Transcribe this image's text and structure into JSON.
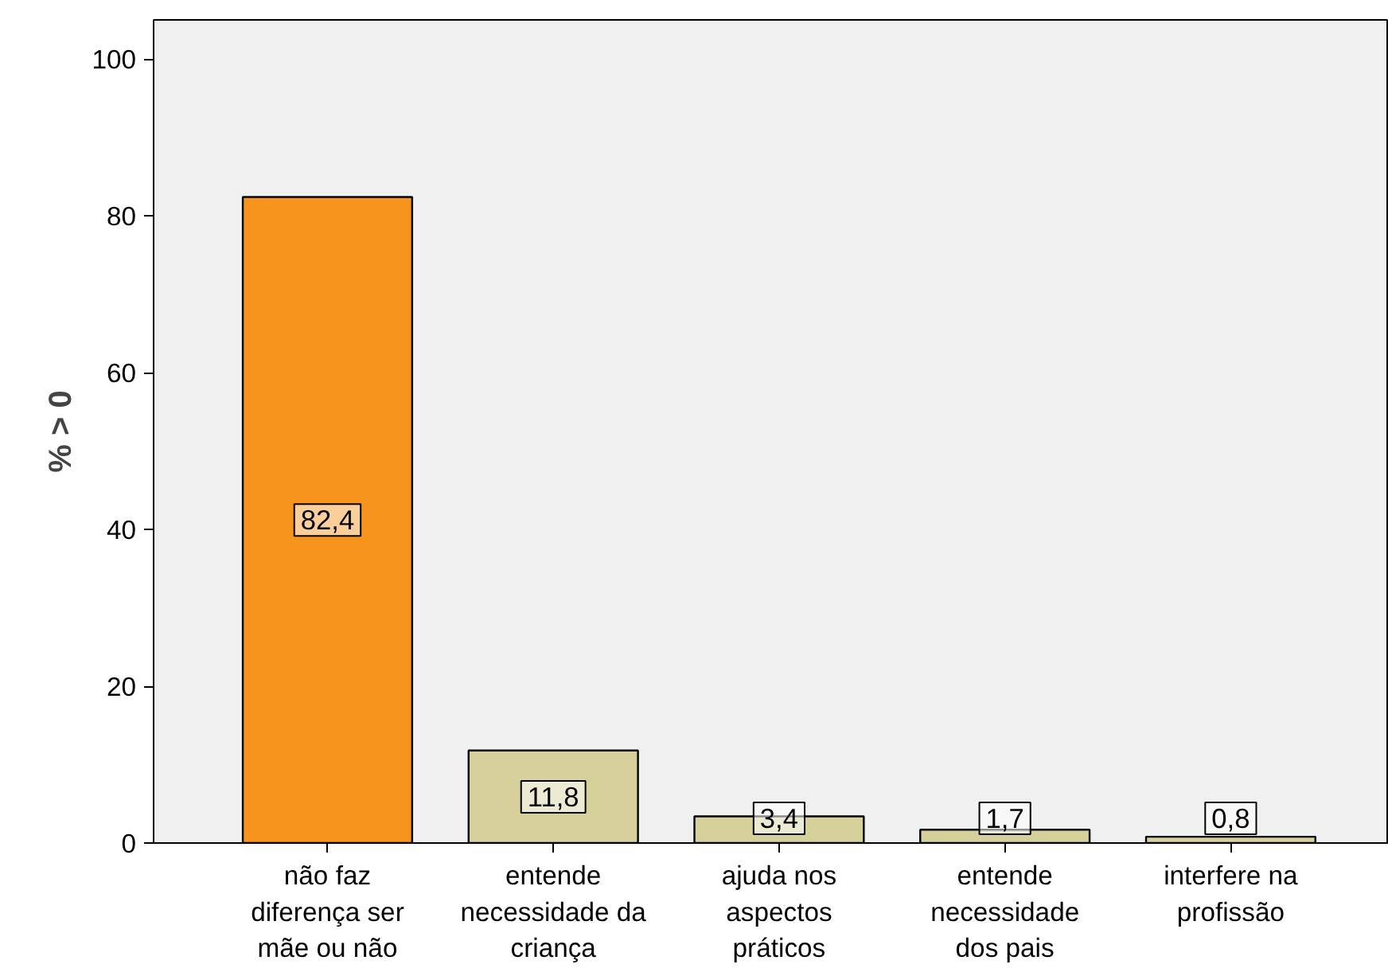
{
  "chart_data": {
    "type": "bar",
    "ylabel": "% > 0",
    "categories": [
      "não faz diferença ser mãe ou não",
      "entende necessidade da criança",
      "ajuda nos aspectos práticos",
      "entende necessidade dos pais",
      "interfere na profissão"
    ],
    "values": [
      82.4,
      11.8,
      3.4,
      1.7,
      0.8
    ],
    "colors": [
      "#f7941d",
      "#d6d09b",
      "#d6d09b",
      "#d6d09b",
      "#d6d09b"
    ],
    "value_labels": [
      "82,4",
      "11,8",
      "3,4",
      "1,7",
      "0,8"
    ],
    "ylim": [
      0,
      105
    ],
    "yticks": [
      0,
      20,
      40,
      60,
      80,
      100
    ],
    "grid": false
  }
}
